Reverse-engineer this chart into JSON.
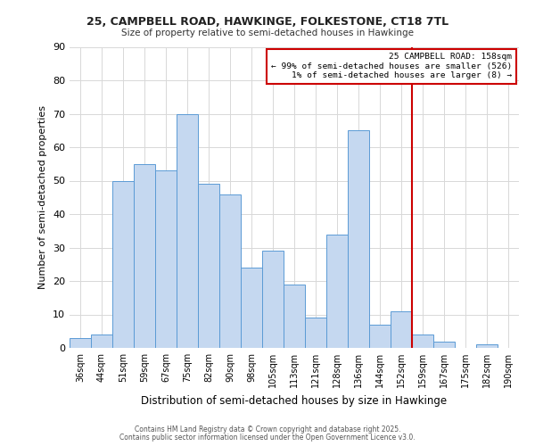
{
  "title1": "25, CAMPBELL ROAD, HAWKINGE, FOLKESTONE, CT18 7TL",
  "title2": "Size of property relative to semi-detached houses in Hawkinge",
  "xlabel": "Distribution of semi-detached houses by size in Hawkinge",
  "ylabel": "Number of semi-detached properties",
  "bin_labels": [
    "36sqm",
    "44sqm",
    "51sqm",
    "59sqm",
    "67sqm",
    "75sqm",
    "82sqm",
    "90sqm",
    "98sqm",
    "105sqm",
    "113sqm",
    "121sqm",
    "128sqm",
    "136sqm",
    "144sqm",
    "152sqm",
    "159sqm",
    "167sqm",
    "175sqm",
    "182sqm",
    "190sqm"
  ],
  "bar_heights": [
    3,
    4,
    50,
    55,
    53,
    70,
    49,
    46,
    24,
    29,
    19,
    9,
    34,
    65,
    7,
    11,
    4,
    2,
    0,
    1,
    0
  ],
  "bar_color": "#c5d8f0",
  "bar_edge_color": "#5b9bd5",
  "vline_bar_idx": 16,
  "vline_color": "#cc0000",
  "annotation_title": "25 CAMPBELL ROAD: 158sqm",
  "annotation_line1": "← 99% of semi-detached houses are smaller (526)",
  "annotation_line2": "1% of semi-detached houses are larger (8) →",
  "ylim": [
    0,
    90
  ],
  "yticks": [
    0,
    10,
    20,
    30,
    40,
    50,
    60,
    70,
    80,
    90
  ],
  "footer1": "Contains HM Land Registry data © Crown copyright and database right 2025.",
  "footer2": "Contains public sector information licensed under the Open Government Licence v3.0.",
  "bg_color": "#ffffff",
  "grid_color": "#d8d8d8"
}
